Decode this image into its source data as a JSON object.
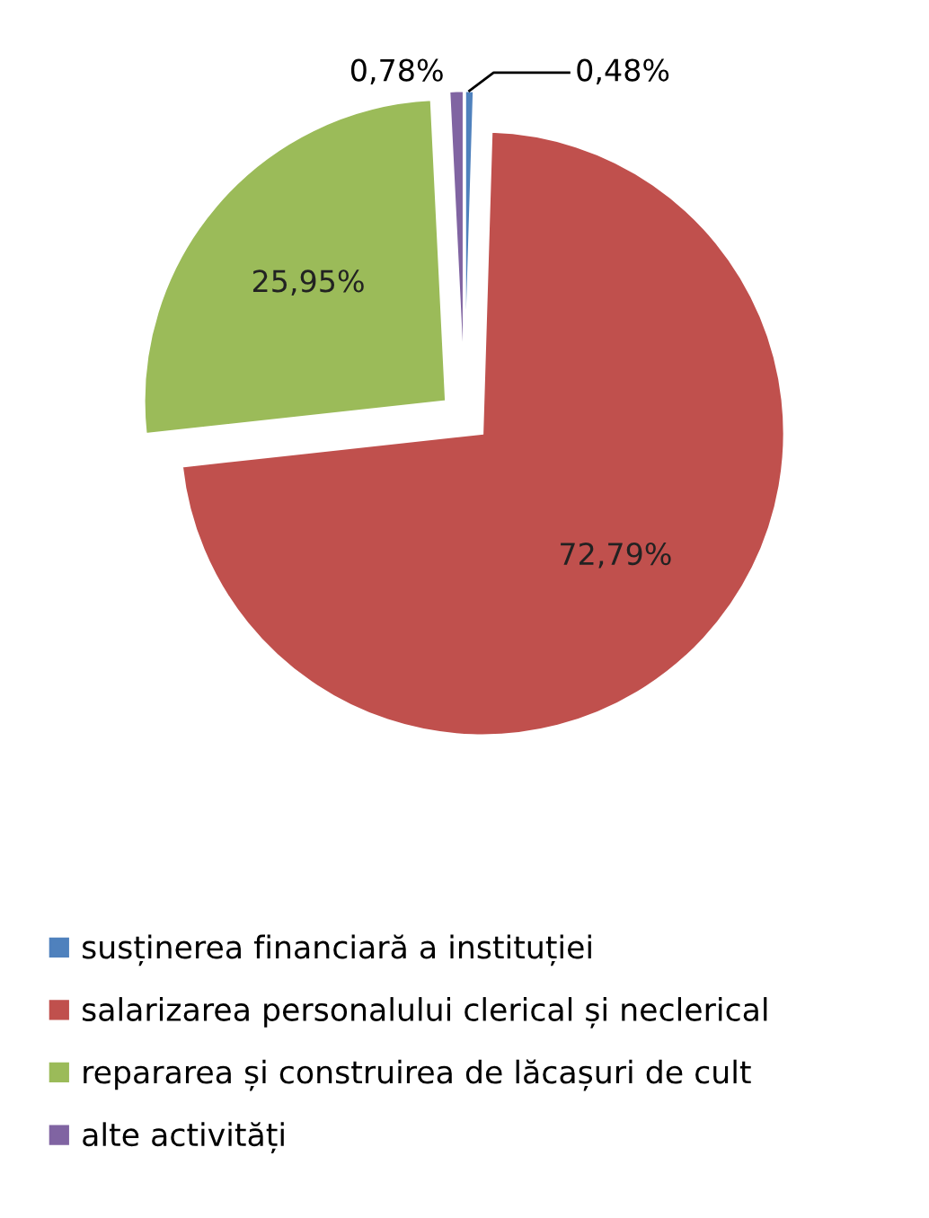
{
  "chart_data": {
    "type": "pie",
    "categories": [
      "susținerea financiară a instituției",
      "salarizarea personalului clerical și neclerical",
      "repararea și construirea de lăcașuri de cult",
      "alte activități"
    ],
    "values": [
      0.48,
      72.79,
      25.95,
      0.78
    ],
    "value_labels": [
      "0,48%",
      "72,79%",
      "25,95%",
      "0,78%"
    ],
    "colors": [
      "#4f81bd",
      "#c0504d",
      "#9bbb59",
      "#8064a2"
    ],
    "legend": "bottom"
  }
}
